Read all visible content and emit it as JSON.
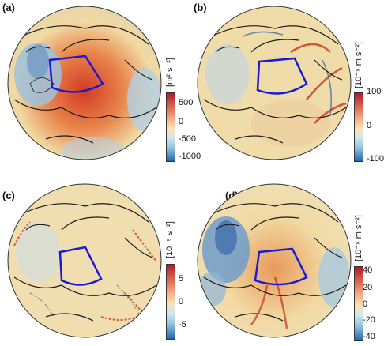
{
  "panels": [
    {
      "label": "(a)",
      "unit": "[m² s⁻²]",
      "ticks": [
        "500",
        "0",
        "-500",
        "-1000"
      ],
      "pattern": "a"
    },
    {
      "label": "(b)",
      "unit": "[10⁻⁵ m s⁻²]",
      "ticks": [
        "100",
        "0",
        "-100"
      ],
      "pattern": "b"
    },
    {
      "label": "(c)",
      "unit": "[10⁻⁹ s⁻²]",
      "ticks": [
        "5",
        "0",
        "-5"
      ],
      "pattern": "c"
    },
    {
      "label": "(d)",
      "unit": "[10⁻⁵ m s⁻²]",
      "ticks": [
        "40",
        "20",
        "0",
        "-20",
        "-40"
      ],
      "pattern": "d"
    }
  ],
  "colors": {
    "red": "#c8321e",
    "orange": "#e8904a",
    "beige": "#f1dfae",
    "lightblue": "#a9c9e0",
    "blue": "#2b5fa6",
    "sector": "#1a1ad6",
    "coast": "#1a1a1a"
  }
}
